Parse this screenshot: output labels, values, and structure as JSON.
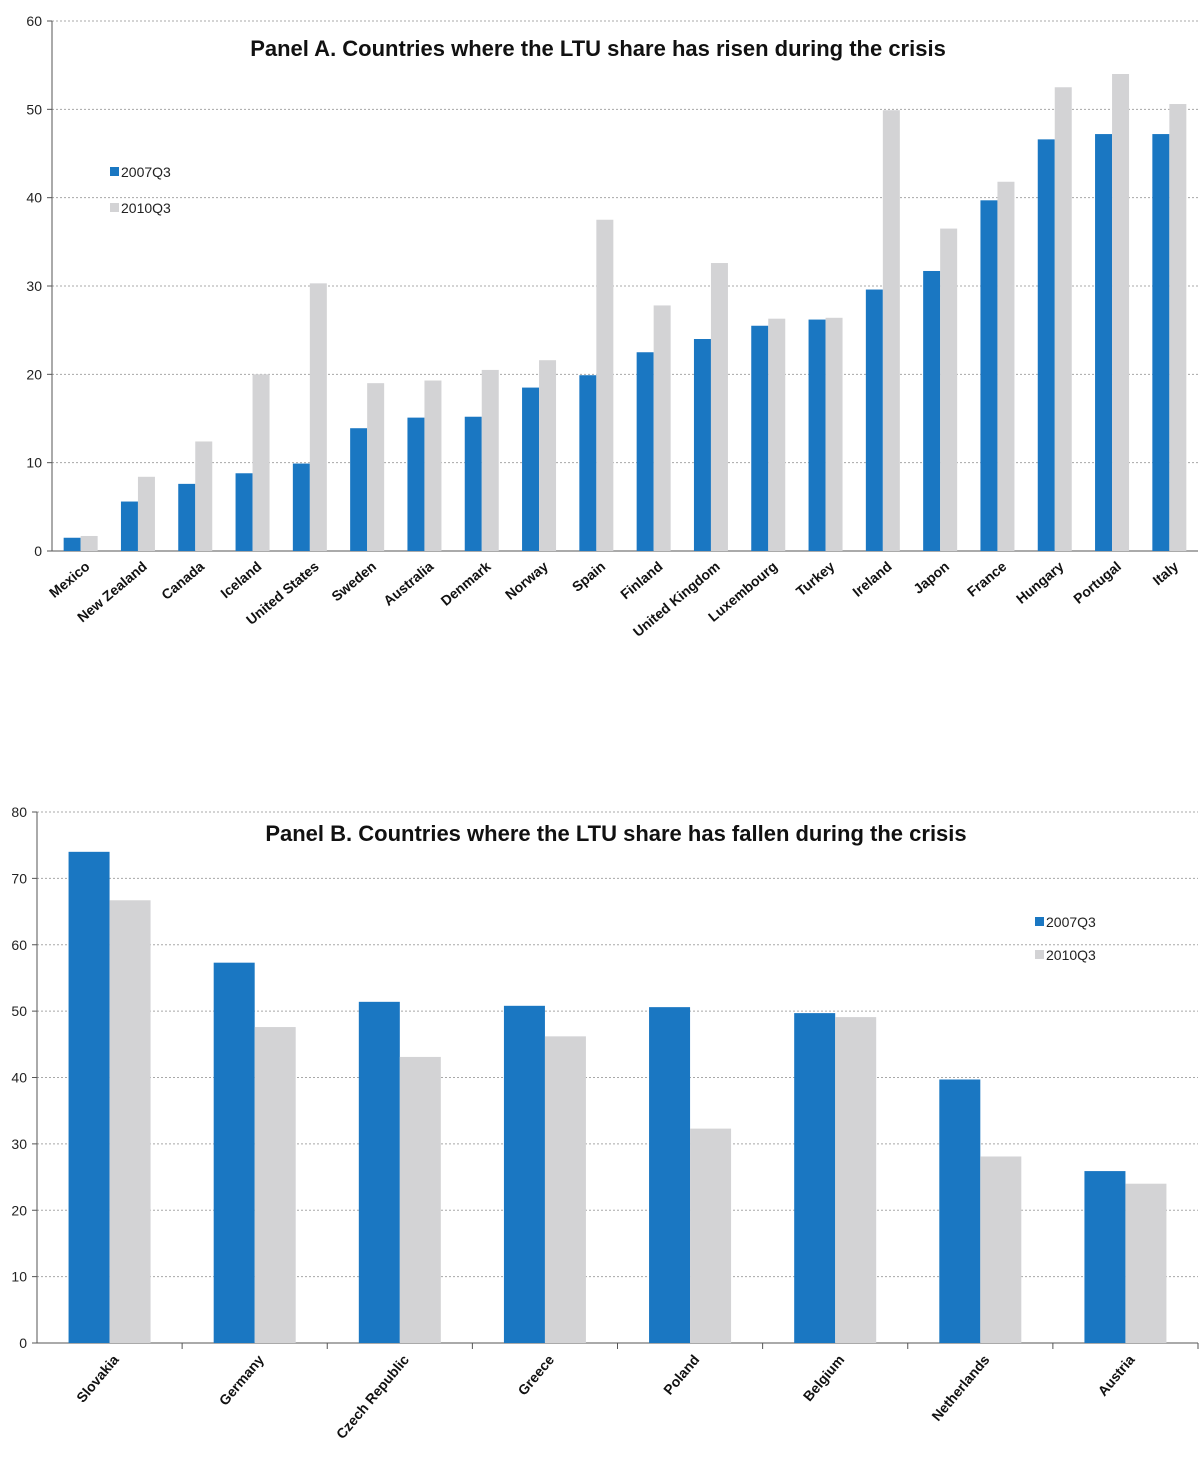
{
  "chart_data": [
    {
      "type": "bar",
      "title": "Panel A. Countries where the LTU share has risen during the crisis",
      "xlabel": "",
      "ylabel": "",
      "ylim": [
        0,
        60
      ],
      "yticks": [
        "0",
        "10",
        "20",
        "30",
        "40",
        "50",
        "60"
      ],
      "grid": true,
      "legend_position": "left",
      "categories": [
        "Mexico",
        "New Zealand",
        "Canada",
        "Iceland",
        "United States",
        "Sweden",
        "Australia",
        "Denmark",
        "Norway",
        "Spain",
        "Finland",
        "United Kingdom",
        "Luxembourg",
        "Turkey",
        "Ireland",
        "Japon",
        "France",
        "Hungary",
        "Portugal",
        "Italy"
      ],
      "series": [
        {
          "name": "2007Q3",
          "color": "#1a77c2",
          "values": [
            1.5,
            5.6,
            7.6,
            8.8,
            9.9,
            13.9,
            15.1,
            15.2,
            18.5,
            19.9,
            22.5,
            24.0,
            25.5,
            26.2,
            29.6,
            31.7,
            39.7,
            46.6,
            47.2,
            47.2
          ]
        },
        {
          "name": "2010Q3",
          "color": "#d3d3d5",
          "values": [
            1.7,
            8.4,
            12.4,
            20.0,
            30.3,
            19.0,
            19.3,
            20.5,
            21.6,
            37.5,
            27.8,
            32.6,
            26.3,
            26.4,
            49.9,
            36.5,
            41.8,
            52.5,
            54.0,
            50.6
          ]
        }
      ]
    },
    {
      "type": "bar",
      "title": "Panel B. Countries where the LTU share has fallen during the crisis",
      "xlabel": "",
      "ylabel": "",
      "ylim": [
        0,
        80
      ],
      "yticks": [
        "0",
        "10",
        "20",
        "30",
        "40",
        "50",
        "60",
        "70",
        "80"
      ],
      "grid": true,
      "legend_position": "right",
      "categories": [
        "Slovakia",
        "Germany",
        "Czech Republic",
        "Greece",
        "Poland",
        "Belgium",
        "Netherlands",
        "Austria"
      ],
      "series": [
        {
          "name": "2007Q3",
          "color": "#1a77c2",
          "values": [
            74.0,
            57.3,
            51.4,
            50.8,
            50.6,
            49.7,
            39.7,
            25.9
          ]
        },
        {
          "name": "2010Q3",
          "color": "#d3d3d5",
          "values": [
            66.7,
            47.6,
            43.1,
            46.2,
            32.3,
            49.1,
            28.1,
            24.0
          ]
        }
      ]
    }
  ]
}
